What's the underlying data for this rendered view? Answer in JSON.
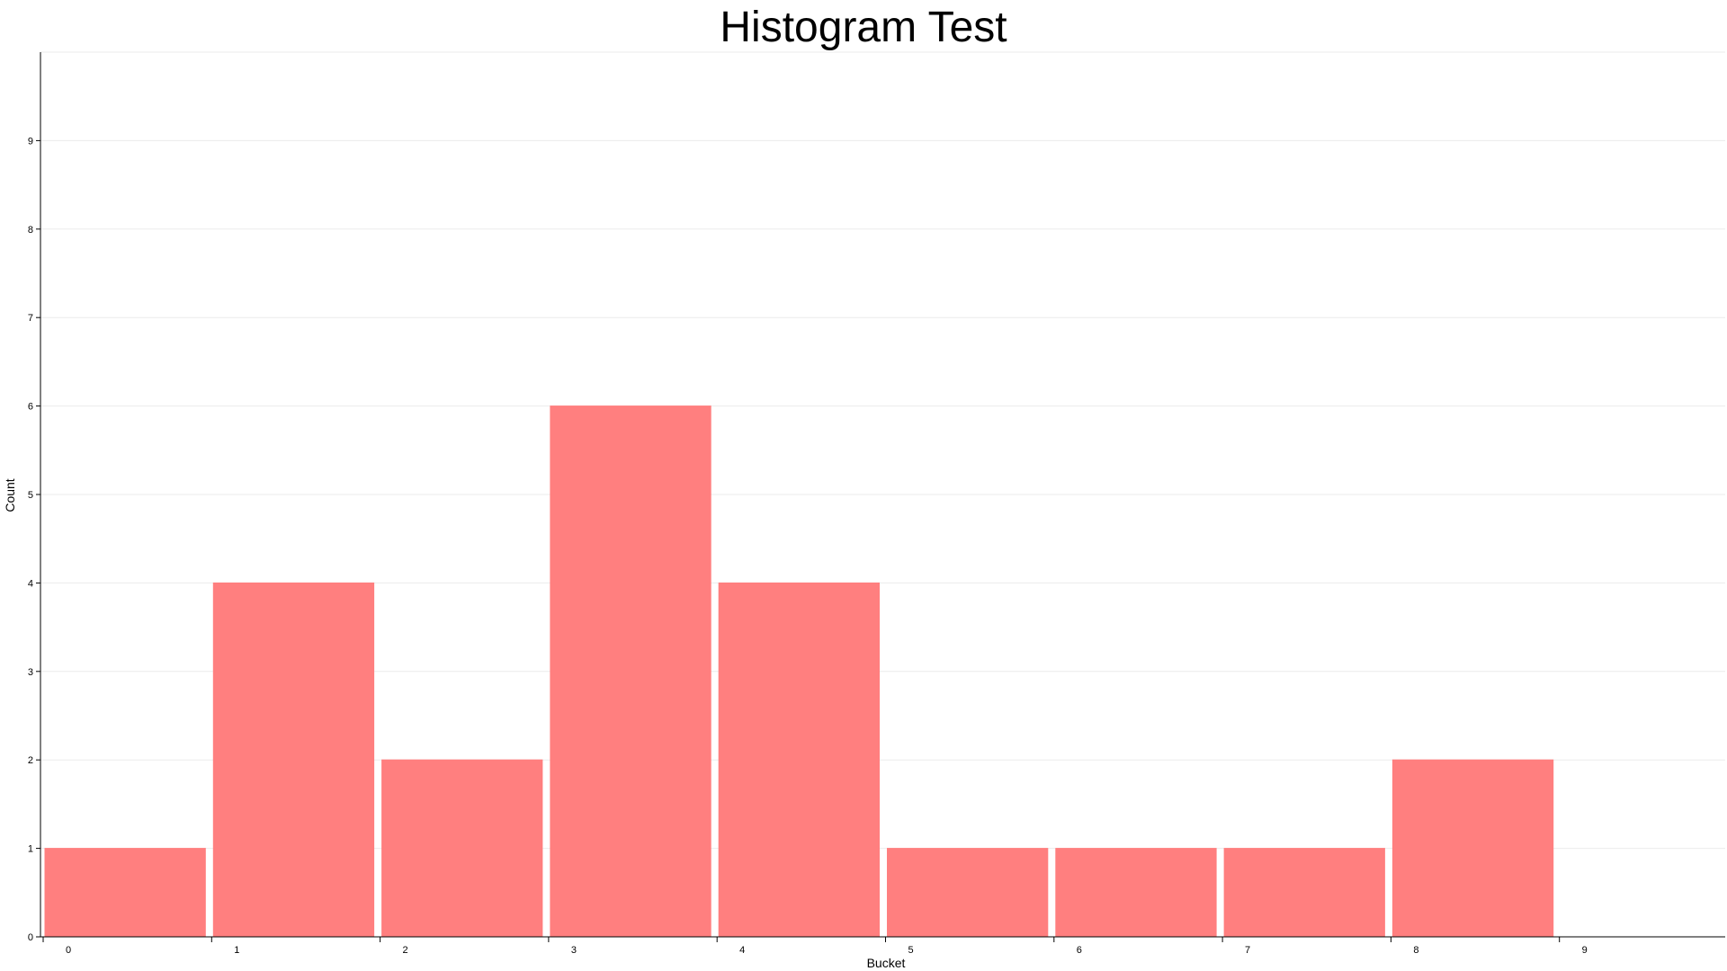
{
  "chart_data": {
    "type": "bar",
    "title": "Histogram Test",
    "xlabel": "Bucket",
    "ylabel": "Count",
    "categories": [
      "0",
      "1",
      "2",
      "3",
      "4",
      "5",
      "6",
      "7",
      "8",
      "9"
    ],
    "values": [
      1,
      4,
      2,
      6,
      4,
      1,
      1,
      1,
      2,
      0
    ],
    "ylim": [
      0,
      10
    ],
    "yticks": [
      "0",
      "1",
      "2",
      "3",
      "4",
      "5",
      "6",
      "7",
      "8",
      "9"
    ],
    "grid": true,
    "bar_color": "#ff7f7f",
    "grid_color": "#ebebeb",
    "axis_color": "#000000"
  }
}
